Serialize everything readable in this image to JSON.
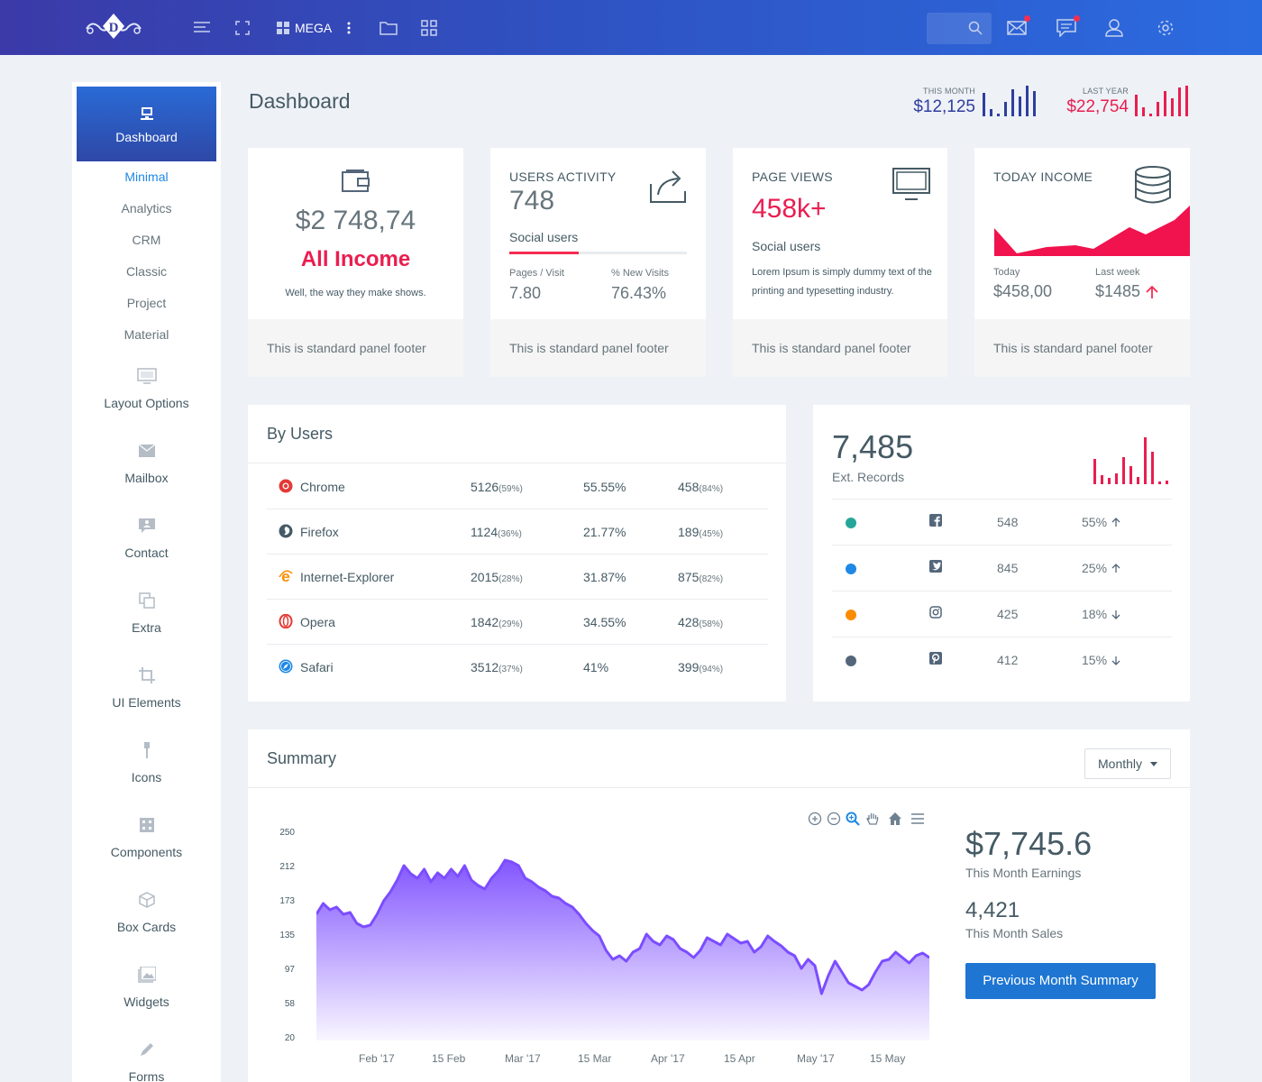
{
  "topbar": {
    "mega_label": "MEGA",
    "search_placeholder": ""
  },
  "sidebar": {
    "active": "Dashboard",
    "subitems": [
      "Minimal",
      "Analytics",
      "CRM",
      "Classic",
      "Project",
      "Material"
    ],
    "items": [
      {
        "label": "Layout Options",
        "icon": "monitor-icon"
      },
      {
        "label": "Mailbox",
        "icon": "mail-icon"
      },
      {
        "label": "Contact",
        "icon": "contact-icon"
      },
      {
        "label": "Extra",
        "icon": "copy-icon"
      },
      {
        "label": "UI Elements",
        "icon": "crop-icon"
      },
      {
        "label": "Icons",
        "icon": "pin-icon"
      },
      {
        "label": "Components",
        "icon": "grid-icon"
      },
      {
        "label": "Box Cards",
        "icon": "box-icon"
      },
      {
        "label": "Widgets",
        "icon": "image-icon"
      },
      {
        "label": "Forms",
        "icon": "pencil-icon"
      }
    ]
  },
  "header": {
    "title": "Dashboard",
    "this_month": {
      "caption": "THIS MONTH",
      "value": "$12,125",
      "color": "#2f3e9e"
    },
    "last_year": {
      "caption": "LAST YEAR",
      "value": "$22,754",
      "color": "#e91e50"
    }
  },
  "cards": {
    "income": {
      "amount": "$2 748,74",
      "title": "All Income",
      "subtitle": "Well, the way they make shows.",
      "footer": "This is standard panel footer"
    },
    "users_activity": {
      "title": "USERS ACTIVITY",
      "value": "748",
      "label": "Social users",
      "progress": 0.39,
      "stat1_label": "Pages / Visit",
      "stat1_value": "7.80",
      "stat2_label": "% New Visits",
      "stat2_value": "76.43%",
      "footer": "This is standard panel footer"
    },
    "page_views": {
      "title": "PAGE VIEWS",
      "value": "458k+",
      "label": "Social users",
      "text": "Lorem Ipsum is simply dummy text of the printing and typesetting industry.",
      "footer": "This is standard panel footer"
    },
    "today_income": {
      "title": "TODAY INCOME",
      "today_label": "Today",
      "today_value": "$458,00",
      "lastweek_label": "Last week",
      "lastweek_value": "$1485",
      "footer": "This is standard panel footer"
    }
  },
  "by_users": {
    "title": "By Users",
    "rows": [
      {
        "browser": "Chrome",
        "icon": "chrome-icon",
        "v1": "5126",
        "v1s": "(59%)",
        "v2": "55.55%",
        "v3": "458",
        "v3s": "(84%)"
      },
      {
        "browser": "Firefox",
        "icon": "firefox-icon",
        "v1": "1124",
        "v1s": "(36%)",
        "v2": "21.77%",
        "v3": "189",
        "v3s": "(45%)"
      },
      {
        "browser": "Internet-Explorer",
        "icon": "ie-icon",
        "v1": "2015",
        "v1s": "(28%)",
        "v2": "31.87%",
        "v3": "875",
        "v3s": "(82%)"
      },
      {
        "browser": "Opera",
        "icon": "opera-icon",
        "v1": "1842",
        "v1s": "(29%)",
        "v2": "34.55%",
        "v3": "428",
        "v3s": "(58%)"
      },
      {
        "browser": "Safari",
        "icon": "safari-icon",
        "v1": "3512",
        "v1s": "(37%)",
        "v2": "41%",
        "v3": "399",
        "v3s": "(94%)"
      }
    ]
  },
  "ext_records": {
    "value": "7,485",
    "label": "Ext. Records",
    "rows": [
      {
        "dot": "#26a69a",
        "icon": "facebook-icon",
        "count": "548",
        "pct": "55%",
        "trend": "up"
      },
      {
        "dot": "#1e88e5",
        "icon": "twitter-icon",
        "count": "845",
        "pct": "25%",
        "trend": "up"
      },
      {
        "dot": "#fb8c00",
        "icon": "instagram-icon",
        "count": "425",
        "pct": "18%",
        "trend": "down"
      },
      {
        "dot": "#54667a",
        "icon": "pinterest-icon",
        "count": "412",
        "pct": "15%",
        "trend": "down"
      }
    ]
  },
  "summary": {
    "title": "Summary",
    "period": "Monthly",
    "earnings_value": "$7,745.6",
    "earnings_label": "This Month Earnings",
    "sales_value": "4,421",
    "sales_label": "This Month Sales",
    "button": "Previous Month Summary"
  },
  "chart_data": {
    "type": "area",
    "title": "",
    "xlabel": "",
    "ylabel": "",
    "ylim": [
      20,
      250
    ],
    "yticks": [
      "250",
      "212",
      "173",
      "135",
      "97",
      "58",
      "20"
    ],
    "xticks": [
      "Feb '17",
      "15 Feb",
      "Mar '17",
      "15 Mar",
      "Apr '17",
      "15 Apr",
      "May '17",
      "15 May"
    ],
    "color": "#7c4dff",
    "series": [
      {
        "values": [
          160,
          172,
          165,
          168,
          160,
          162,
          150,
          146,
          148,
          160,
          175,
          185,
          198,
          214,
          205,
          200,
          210,
          196,
          206,
          200,
          210,
          202,
          214,
          198,
          192,
          188,
          200,
          208,
          220,
          218,
          214,
          200,
          196,
          190,
          186,
          180,
          178,
          172,
          168,
          160,
          150,
          142,
          136,
          120,
          110,
          114,
          108,
          118,
          122,
          138,
          130,
          126,
          136,
          132,
          122,
          118,
          112,
          120,
          134,
          130,
          126,
          138,
          133,
          128,
          130,
          118,
          124,
          136,
          130,
          125,
          118,
          114,
          100,
          110,
          103,
          72,
          92,
          108,
          96,
          84,
          80,
          76,
          82,
          96,
          108,
          110,
          118,
          112,
          106,
          114,
          117,
          112
        ]
      }
    ]
  }
}
